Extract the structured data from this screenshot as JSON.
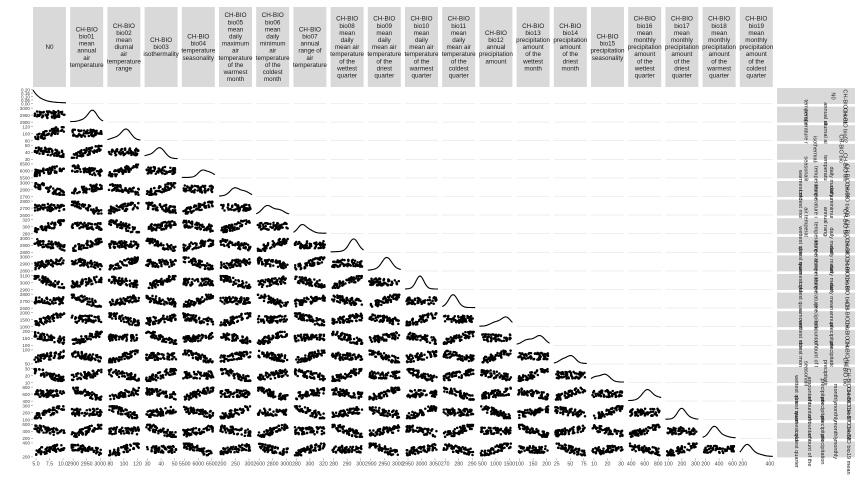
{
  "chart_data": {
    "type": "scatter",
    "title": "",
    "variables": [
      {
        "key": "N0",
        "label": "N0"
      },
      {
        "key": "bio01",
        "label": "CH-BIO bio01 mean annual air temperature"
      },
      {
        "key": "bio02",
        "label": "CH-BIO bio02 mean diurnal air temperature range"
      },
      {
        "key": "bio03",
        "label": "CH-BIO bio03 isothermality"
      },
      {
        "key": "bio04",
        "label": "CH-BIO bio04 temperature seasonality"
      },
      {
        "key": "bio05",
        "label": "CH-BIO bio05 mean daily maximum air temperature of the warmest month"
      },
      {
        "key": "bio06",
        "label": "CH-BIO bio06 mean daily minimum air temperature of the coldest month"
      },
      {
        "key": "bio07",
        "label": "CH-BIO bio07 annual range of air temperature"
      },
      {
        "key": "bio08",
        "label": "CH-BIO bio08 mean daily mean air temperature of the wettest quarter"
      },
      {
        "key": "bio09",
        "label": "CH-BIO bio09 mean daily mean air temperature of the driest quarter"
      },
      {
        "key": "bio10",
        "label": "CH-BIO bio10 mean daily mean air temperature of the warmest quarter"
      },
      {
        "key": "bio11",
        "label": "CH-BIO bio11 mean daily mean air temperature of the coldest quarter"
      },
      {
        "key": "bio12",
        "label": "CH-BIO bio12 annual precipitation amount"
      },
      {
        "key": "bio13",
        "label": "CH-BIO bio13 precipitation amount of the wettest month"
      },
      {
        "key": "bio14",
        "label": "CH-BIO bio14 precipitation amount of the driest month"
      },
      {
        "key": "bio15",
        "label": "CH-BIO bio15 precipitation seasonality"
      },
      {
        "key": "bio16",
        "label": "CH-BIO bio16 mean monthly precipitation amount of the wettest quarter"
      },
      {
        "key": "bio17",
        "label": "CH-BIO bio17 mean monthly precipitation amount of the driest quarter"
      },
      {
        "key": "bio18",
        "label": "CH-BIO bio18 mean monthly precipitation amount of the warmest quarter"
      },
      {
        "key": "bio19",
        "label": "CH-BIO bio19 mean monthly precipitation amount of the coldest quarter"
      }
    ],
    "x_tick_labels": [
      [
        "5.0",
        "7.5",
        "10.0"
      ],
      [
        "2900",
        "2950",
        "3000"
      ],
      [
        "80",
        "100",
        "120"
      ],
      [
        "30",
        "40",
        "50"
      ],
      [
        "5500",
        "6000",
        "6500"
      ],
      [
        "200",
        "250",
        "300"
      ],
      [
        "2600",
        "2800",
        "3000"
      ],
      [
        "280",
        "300",
        "320"
      ],
      [
        "280",
        "290",
        "300"
      ],
      [
        "2900",
        "2950",
        "3000"
      ],
      [
        "2950",
        "3000",
        "3050"
      ],
      [
        "270",
        "280",
        "290"
      ],
      [
        "500",
        "1000",
        "1500"
      ],
      [
        "100",
        "150",
        "200"
      ],
      [
        "25",
        "50",
        "75"
      ],
      [
        "10",
        "20",
        "30"
      ],
      [
        "400",
        "600",
        "800"
      ],
      [
        "100",
        "200",
        "300"
      ],
      [
        "200",
        "400",
        "600"
      ],
      [
        "200",
        "400"
      ]
    ],
    "y_tick_labels": [
      [
        "0.00",
        "0.05",
        "0.10",
        "0.15",
        "0.20"
      ],
      [
        "2900",
        "2950",
        "3000"
      ],
      [
        "80",
        "100",
        "120"
      ],
      [
        "30",
        "40",
        "50"
      ],
      [
        "5500",
        "6000",
        "6500"
      ],
      [
        "2700",
        "2800",
        "3000"
      ],
      [
        "2600",
        "2700",
        "2800"
      ],
      [
        "280",
        "300",
        "320"
      ],
      [
        "2800",
        "2900",
        "3000"
      ],
      [
        "2800",
        "2900",
        "3000"
      ],
      [
        "2900",
        "3000",
        "3100"
      ],
      [
        "2600",
        "2700",
        "2800"
      ],
      [
        "1000",
        "1500",
        "2000"
      ],
      [
        "100",
        "150",
        "200"
      ],
      [
        "50",
        "100"
      ],
      [
        "10",
        "20",
        "30"
      ],
      [
        "400",
        "600",
        "800"
      ],
      [
        "100",
        "200",
        "300"
      ],
      [
        "200",
        "400",
        "600"
      ],
      [
        "200",
        "400"
      ]
    ],
    "diagonal": "density",
    "upper_panels": "blank",
    "lower_panels": "scatter",
    "grid": false,
    "colors": {
      "points": "#000000",
      "strip": "#d9d9d9",
      "panel_bg": "#ffffff"
    }
  }
}
